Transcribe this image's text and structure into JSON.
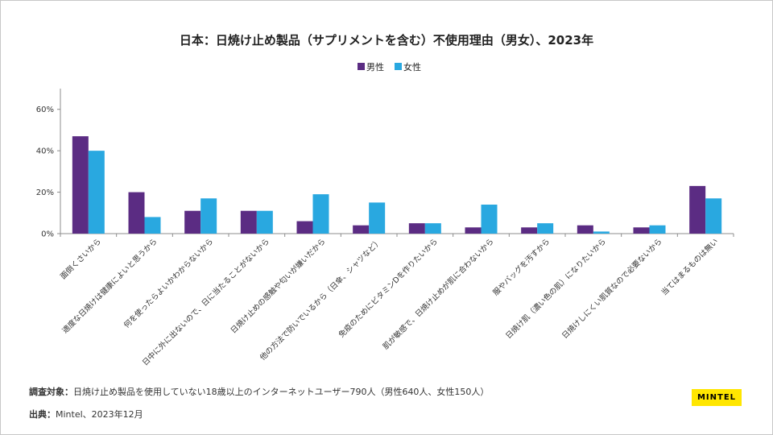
{
  "chart_data": {
    "type": "bar",
    "title": "日本：日焼け止め製品（サプリメントを含む）不使用理由（男女）、2023年",
    "categories": [
      "面倒くさいから",
      "適度な日焼けは健康によいと思うから",
      "何を使ったらよいかわからないから",
      "日中に外に出ないので、日に当たることがないから",
      "日焼け止めの感触や匂いが嫌いだから",
      "他の方法で防いでいるから（日傘、シャツなど）",
      "免疫のためにビタミンDを作りたいから",
      "肌が敏感で、日焼け止めが肌に合わないから",
      "服やバッグを汚すから",
      "日焼け肌（濃い色の肌）になりたいから",
      "日焼けしにくい肌質なので必要ないから",
      "当てはまるものは無い"
    ],
    "series": [
      {
        "name": "男性",
        "color": "#5b2c83",
        "values": [
          47,
          20,
          11,
          11,
          6,
          4,
          5,
          3,
          3,
          4,
          3,
          23
        ]
      },
      {
        "name": "女性",
        "color": "#29a8e0",
        "values": [
          40,
          8,
          17,
          11,
          19,
          15,
          5,
          14,
          5,
          1,
          4,
          17
        ]
      }
    ],
    "ylim": [
      0,
      70
    ],
    "yticks": [
      0,
      20,
      40,
      60
    ],
    "ytick_labels": [
      "0%",
      "20%",
      "40%",
      "60%"
    ],
    "legend_position": "top-center",
    "grid": false
  },
  "footer": {
    "survey_label": "調査対象：",
    "survey_text": "日焼け止め製品を使用していない18歳以上のインターネットユーザー790人（男性640人、女性150人）",
    "source_label": "出典：",
    "source_text": "Mintel、2023年12月"
  },
  "logo": {
    "text": "MINTEL",
    "color": "#ffe600"
  }
}
